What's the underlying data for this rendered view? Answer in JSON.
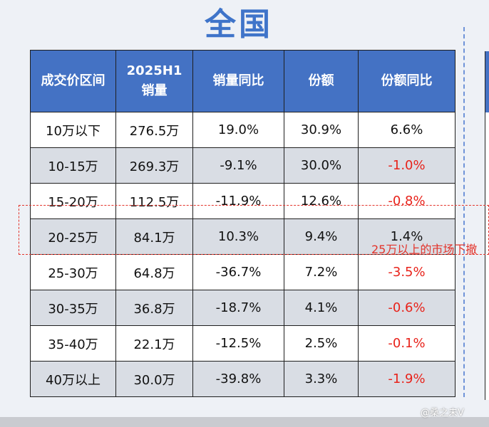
{
  "title": "全国",
  "table": {
    "headers": [
      "成交价区间",
      "2025H1\n销量",
      "销量同比",
      "份额",
      "份额同比"
    ],
    "rows": [
      [
        "10万以下",
        "276.5万",
        "19.0%",
        "30.9%",
        "6.6%"
      ],
      [
        "10-15万",
        "269.3万",
        "-9.1%",
        "30.0%",
        "-1.0%"
      ],
      [
        "15-20万",
        "112.5万",
        "-11.9%",
        "12.6%",
        "-0.8%"
      ],
      [
        "20-25万",
        "84.1万",
        "10.3%",
        "9.4%",
        "1.4%"
      ],
      [
        "25-30万",
        "64.8万",
        "-36.7%",
        "7.2%",
        "-3.5%"
      ],
      [
        "30-35万",
        "36.8万",
        "-18.7%",
        "4.1%",
        "-0.6%"
      ],
      [
        "35-40万",
        "22.1万",
        "-12.5%",
        "2.5%",
        "-0.1%"
      ],
      [
        "40万以上",
        "30.0万",
        "-39.8%",
        "3.3%",
        "-1.9%"
      ]
    ]
  },
  "chart_data": {
    "type": "table",
    "title": "全国",
    "columns": [
      "成交价区间",
      "2025H1 销量",
      "销量同比",
      "份额",
      "份额同比"
    ],
    "categories": [
      "10万以下",
      "10-15万",
      "15-20万",
      "20-25万",
      "25-30万",
      "30-35万",
      "35-40万",
      "40万以上"
    ],
    "series": [
      {
        "name": "2025H1 销量",
        "values": [
          276.5,
          269.3,
          112.5,
          84.1,
          64.8,
          36.8,
          22.1,
          30.0
        ]
      },
      {
        "name": "销量同比",
        "values": [
          19.0,
          -9.1,
          -11.9,
          10.3,
          -36.7,
          -18.7,
          -12.5,
          -39.8
        ]
      },
      {
        "name": "份额",
        "values": [
          30.9,
          30.0,
          12.6,
          9.4,
          7.2,
          4.1,
          2.5,
          3.3
        ]
      },
      {
        "name": "份额同比",
        "values": [
          6.6,
          -1.0,
          -0.8,
          1.4,
          -3.5,
          -0.6,
          -0.1,
          -1.9
        ]
      }
    ],
    "negative_color": "#e8231b",
    "header_color": "#4472c4"
  },
  "annotation": {
    "text": "25万以上的市场下撤"
  },
  "watermark": "@桑之未V"
}
